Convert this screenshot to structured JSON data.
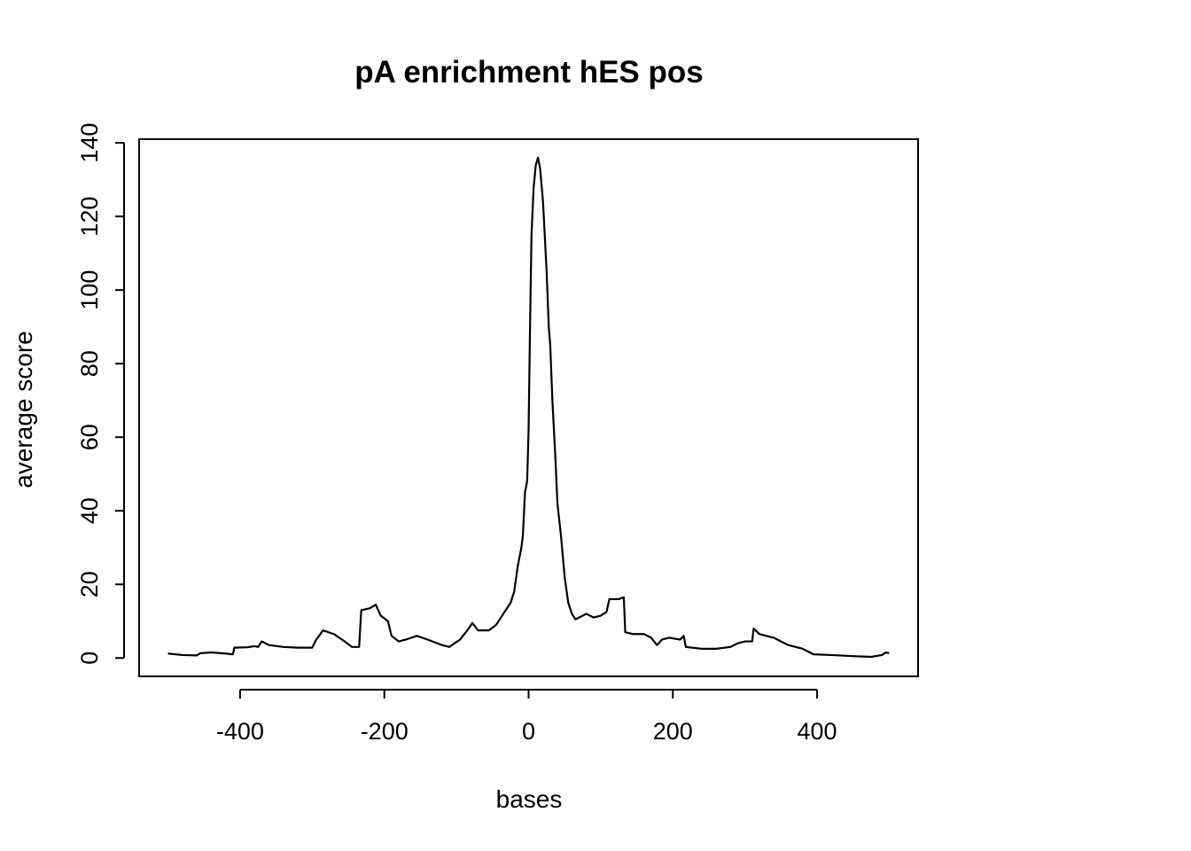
{
  "chart_data": {
    "type": "line",
    "title": "pA enrichment hES pos",
    "xlabel": "bases",
    "ylabel": "average score",
    "x": [
      -500,
      -480,
      -460,
      -455,
      -440,
      -420,
      -410,
      -408,
      -390,
      -380,
      -375,
      -370,
      -360,
      -340,
      -320,
      -300,
      -295,
      -285,
      -270,
      -255,
      -245,
      -235,
      -232,
      -220,
      -212,
      -205,
      -195,
      -190,
      -180,
      -170,
      -155,
      -140,
      -120,
      -110,
      -95,
      -85,
      -78,
      -70,
      -55,
      -45,
      -35,
      -25,
      -20,
      -15,
      -10,
      -8,
      -5,
      -2,
      0,
      2,
      4,
      7,
      10,
      13,
      16,
      20,
      25,
      28,
      30,
      33,
      37,
      40,
      45,
      50,
      55,
      60,
      65,
      70,
      80,
      90,
      100,
      108,
      112,
      125,
      132,
      134,
      145,
      160,
      170,
      178,
      185,
      195,
      210,
      215,
      218,
      240,
      260,
      280,
      290,
      300,
      310,
      312,
      320,
      340,
      360,
      380,
      395,
      420,
      450,
      475,
      490,
      495,
      500
    ],
    "values": [
      1.2,
      0.8,
      0.7,
      1.3,
      1.5,
      1.2,
      1.0,
      2.8,
      2.9,
      3.2,
      3.0,
      4.5,
      3.5,
      3.0,
      2.8,
      2.8,
      4.8,
      7.5,
      6.5,
      4.5,
      3.0,
      3.0,
      13,
      13.5,
      14.5,
      11.5,
      10,
      6,
      4.5,
      5,
      6,
      5,
      3.5,
      3,
      5,
      7.5,
      9.5,
      7.5,
      7.5,
      9,
      12,
      15,
      18,
      25,
      30,
      33,
      45,
      48,
      62,
      90,
      115,
      128,
      134,
      136,
      133,
      124,
      105,
      90,
      85,
      70,
      55,
      42,
      33,
      22,
      15,
      12,
      10.5,
      11,
      12,
      11,
      11.5,
      12.5,
      16,
      16,
      16.5,
      7,
      6.5,
      6.5,
      5.5,
      3.5,
      5,
      5.5,
      5,
      6,
      3,
      2.5,
      2.5,
      3,
      4,
      4.5,
      4.5,
      8,
      6.5,
      5.5,
      3.5,
      2.5,
      1,
      0.8,
      0.5,
      0.3,
      0.8,
      1.5,
      1.3
    ],
    "color": "#000000",
    "xlim": [
      -540,
      540
    ],
    "ylim": [
      -5,
      141
    ],
    "xticks": [
      -400,
      -200,
      0,
      200,
      400
    ],
    "yticks": [
      0,
      20,
      40,
      60,
      80,
      100,
      120,
      140
    ]
  }
}
